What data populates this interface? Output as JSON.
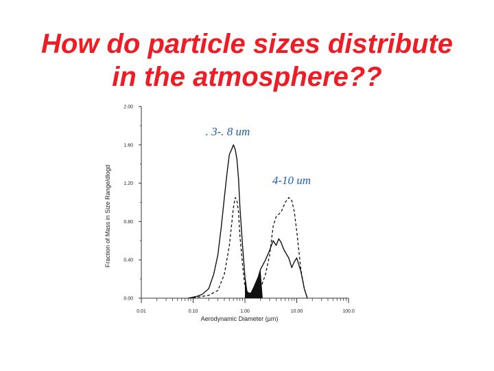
{
  "slide": {
    "title_line1": "How do particle sizes distribute",
    "title_line2": "in the atmosphere??"
  },
  "colors": {
    "title": "#ee1c24",
    "annotation": "#1f5fb0",
    "ink": "#111111"
  },
  "chart_data": {
    "type": "line",
    "xlabel": "Aerodynamic Diameter (µm)",
    "ylabel": "Fraction of Mass in Size Range/dlogd",
    "x_scale": "log",
    "xlim": [
      0.01,
      100
    ],
    "ylim": [
      0,
      2.0
    ],
    "x_ticks": [
      "0.01",
      "0.10",
      "1.00",
      "10.00",
      "100.0"
    ],
    "y_ticks": [
      "0.00",
      "0.40",
      "0.80",
      "1.20",
      "1.60",
      "2.00"
    ],
    "annotations": [
      ". 3-. 8 um",
      "4-10 um"
    ],
    "series": [
      {
        "style": "solid",
        "x": [
          0.08,
          0.12,
          0.15,
          0.2,
          0.25,
          0.3,
          0.35,
          0.4,
          0.45,
          0.5,
          0.55,
          0.6,
          0.65,
          0.7,
          0.75,
          0.8,
          0.9,
          1.0,
          1.1,
          1.3,
          1.5,
          1.8,
          2.0,
          2.5,
          3.0,
          3.5,
          4.0,
          4.5,
          5.0,
          5.5,
          6.0,
          7.0,
          8.0,
          9.0,
          10.0,
          12.0,
          14.0,
          16.0
        ],
        "y": [
          0.0,
          0.02,
          0.04,
          0.1,
          0.25,
          0.45,
          0.75,
          1.05,
          1.3,
          1.5,
          1.55,
          1.6,
          1.55,
          1.45,
          1.25,
          0.95,
          0.55,
          0.22,
          0.06,
          0.05,
          0.12,
          0.22,
          0.3,
          0.4,
          0.5,
          0.6,
          0.55,
          0.62,
          0.58,
          0.52,
          0.48,
          0.42,
          0.32,
          0.38,
          0.42,
          0.28,
          0.1,
          0.0
        ]
      },
      {
        "style": "dashed",
        "x": [
          0.08,
          0.12,
          0.2,
          0.3,
          0.4,
          0.5,
          0.6,
          0.65,
          0.7,
          0.75,
          0.8,
          0.9,
          1.0,
          1.2,
          1.5,
          2.0,
          2.5,
          3.0,
          3.5,
          4.0,
          5.0,
          6.0,
          7.0,
          8.0,
          9.0,
          10.0,
          12.0,
          14.0,
          16.0
        ],
        "y": [
          0.0,
          0.01,
          0.03,
          0.08,
          0.25,
          0.55,
          0.95,
          1.05,
          1.02,
          0.9,
          0.65,
          0.35,
          0.12,
          0.03,
          0.02,
          0.1,
          0.25,
          0.45,
          0.75,
          0.85,
          0.9,
          1.0,
          1.05,
          1.02,
          0.9,
          0.7,
          0.3,
          0.1,
          0.0
        ]
      }
    ],
    "shaded_band": {
      "from_x": 1.0,
      "to_x": 2.2
    }
  }
}
